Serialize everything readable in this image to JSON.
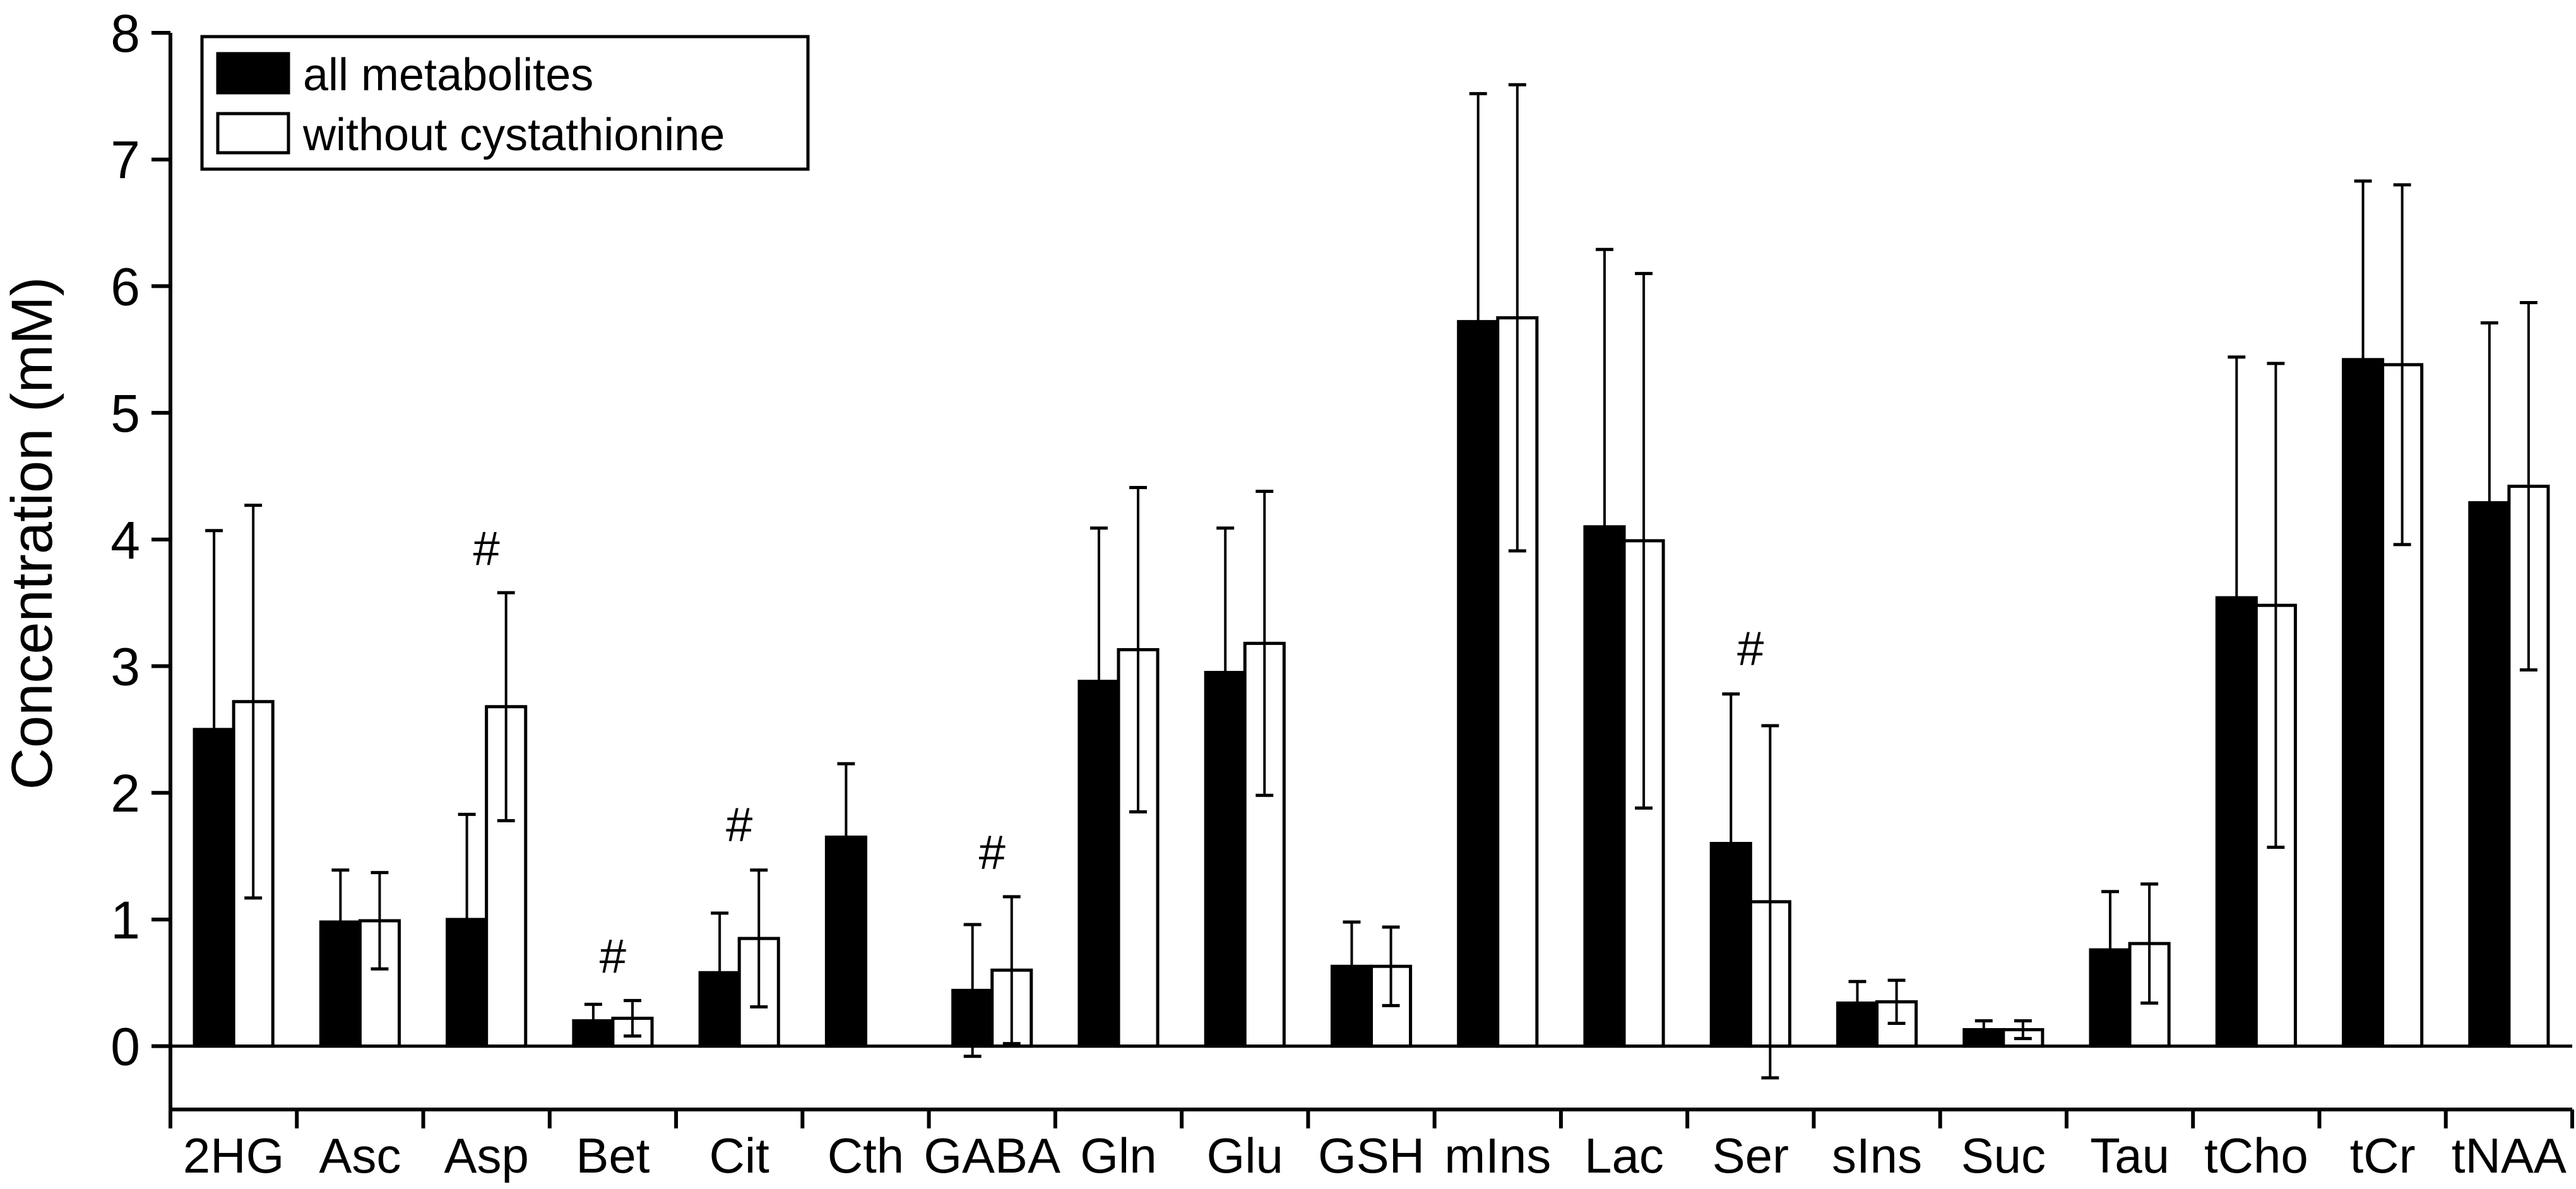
{
  "chart_data": {
    "type": "bar",
    "title": "",
    "xlabel": "",
    "ylabel": "Concentration (mM)",
    "ylim": [
      -0.5,
      8
    ],
    "yticks": [
      0,
      1,
      2,
      3,
      4,
      5,
      6,
      7,
      8
    ],
    "grid": false,
    "legend_position": "top-left",
    "categories": [
      "2HG",
      "Asc",
      "Asp",
      "Bet",
      "Cit",
      "Cth",
      "GABA",
      "Gln",
      "Glu",
      "GSH",
      "mIns",
      "Lac",
      "Ser",
      "sIns",
      "Suc",
      "Tau",
      "tCho",
      "tCr",
      "tNAA"
    ],
    "series": [
      {
        "name": "all metabolites",
        "fill": "#000000",
        "values": [
          2.5,
          0.98,
          1.0,
          0.2,
          0.58,
          1.65,
          0.44,
          2.88,
          2.95,
          0.63,
          5.72,
          4.1,
          1.6,
          0.34,
          0.13,
          0.76,
          3.54,
          5.42,
          4.29
        ],
        "err_up": [
          1.57,
          0.41,
          0.83,
          0.13,
          0.47,
          0.58,
          0.52,
          1.21,
          1.14,
          0.35,
          1.8,
          2.19,
          1.18,
          0.17,
          0.07,
          0.46,
          1.9,
          1.41,
          1.42
        ],
        "err_low": [
          null,
          null,
          null,
          null,
          null,
          null,
          0.52,
          null,
          null,
          null,
          null,
          null,
          null,
          null,
          null,
          null,
          null,
          null,
          null
        ]
      },
      {
        "name": "without cystathionine",
        "fill": "#ffffff",
        "values": [
          2.72,
          0.99,
          2.68,
          0.22,
          0.85,
          null,
          0.6,
          3.13,
          3.18,
          0.63,
          5.75,
          3.99,
          1.14,
          0.35,
          0.13,
          0.81,
          3.48,
          5.38,
          4.42
        ],
        "err_up": [
          1.55,
          0.38,
          0.9,
          0.14,
          0.54,
          null,
          0.58,
          1.28,
          1.2,
          0.31,
          1.84,
          2.11,
          1.39,
          0.17,
          0.07,
          0.47,
          1.91,
          1.42,
          1.45
        ],
        "err_low": [
          1.55,
          0.38,
          0.9,
          0.14,
          0.54,
          null,
          0.58,
          1.28,
          1.2,
          0.31,
          1.84,
          2.11,
          1.39,
          0.17,
          0.07,
          0.47,
          1.91,
          1.42,
          1.45
        ]
      }
    ],
    "annotations": [
      {
        "category": "Asp",
        "text": "#",
        "y": 3.8
      },
      {
        "category": "Bet",
        "text": "#",
        "y": 0.58
      },
      {
        "category": "Cit",
        "text": "#",
        "y": 1.62
      },
      {
        "category": "GABA",
        "text": "#",
        "y": 1.4
      },
      {
        "category": "Ser",
        "text": "#",
        "y": 3.01
      }
    ]
  }
}
